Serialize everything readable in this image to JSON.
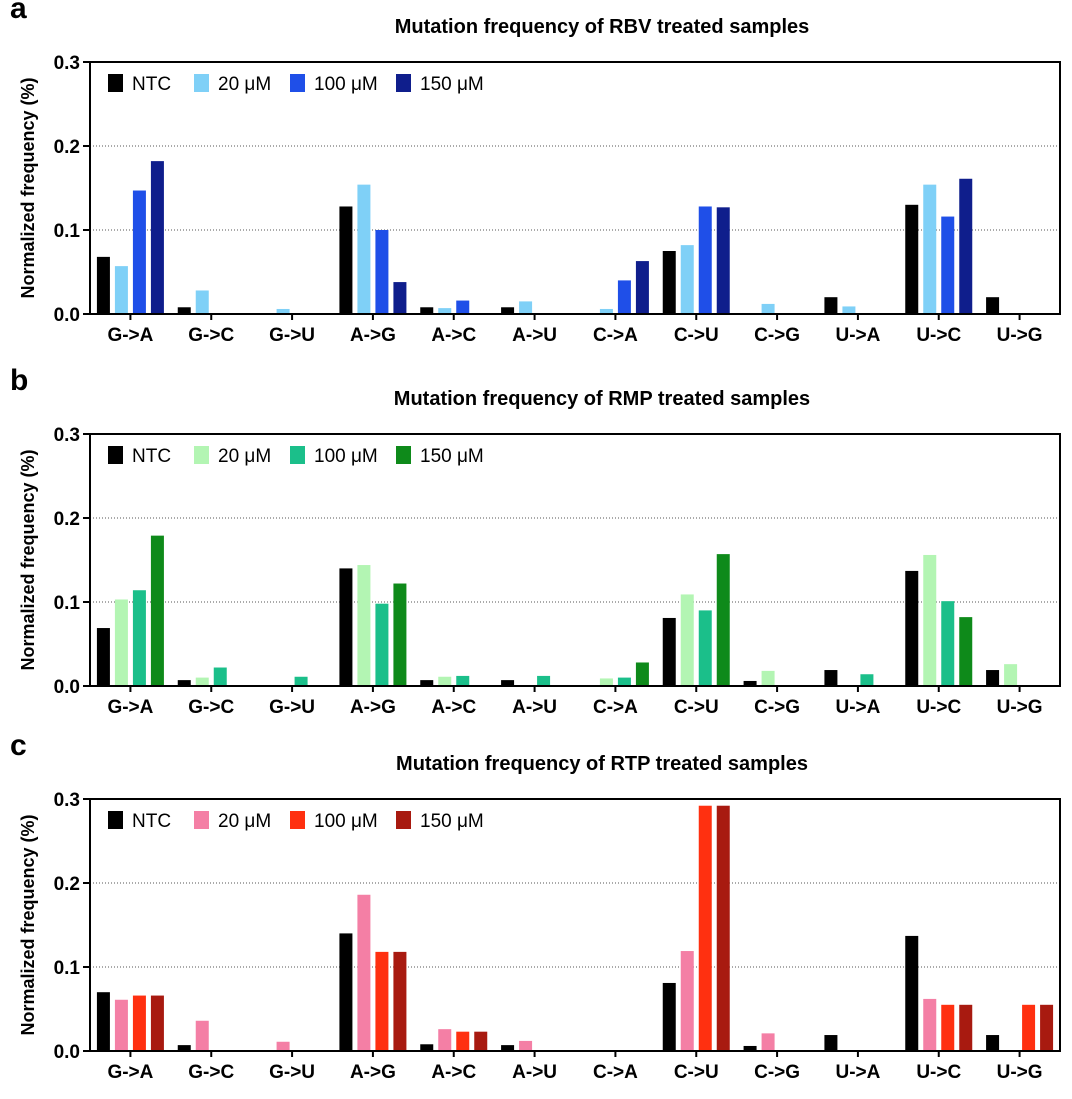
{
  "chart_data": [
    {
      "type": "bar",
      "panel_label": "a",
      "title": "Mutation frequency of RBV treated samples",
      "ylabel": "Normalized  frequency (%)",
      "xlabel": "",
      "ylim": [
        0,
        0.3
      ],
      "yticks": [
        "0.0",
        "0.1",
        "0.2",
        "0.3"
      ],
      "grid": "horizontal dotted",
      "legend_position": "top-left",
      "categories": [
        "G->A",
        "G->C",
        "G->U",
        "A->G",
        "A->C",
        "A->U",
        "C->A",
        "C->U",
        "C->G",
        "U->A",
        "U->C",
        "U->G"
      ],
      "series": [
        {
          "name": "NTC",
          "color": "#000000",
          "values": [
            0.068,
            0.008,
            0,
            0.128,
            0.008,
            0.008,
            0,
            0.075,
            0,
            0.02,
            0.13,
            0.02
          ]
        },
        {
          "name": "20 μM",
          "color": "#7fd0f7",
          "values": [
            0.057,
            0.028,
            0.006,
            0.154,
            0.007,
            0.015,
            0.006,
            0.082,
            0.012,
            0.009,
            0.154,
            0
          ]
        },
        {
          "name": "100 μM",
          "color": "#1f4fe8",
          "values": [
            0.147,
            0,
            0,
            0.1,
            0.016,
            0,
            0.04,
            0.128,
            0,
            0,
            0.116,
            0
          ]
        },
        {
          "name": "150 μM",
          "color": "#0f1e8c",
          "values": [
            0.182,
            0,
            0,
            0.038,
            0,
            0,
            0.063,
            0.127,
            0,
            0,
            0.161,
            0
          ]
        }
      ]
    },
    {
      "type": "bar",
      "panel_label": "b",
      "title": "Mutation frequency of RMP treated samples",
      "ylabel": "Normalized  frequency (%)",
      "xlabel": "",
      "ylim": [
        0,
        0.3
      ],
      "yticks": [
        "0.0",
        "0.1",
        "0.2",
        "0.3"
      ],
      "grid": "horizontal dotted",
      "legend_position": "top-left",
      "categories": [
        "G->A",
        "G->C",
        "G->U",
        "A->G",
        "A->C",
        "A->U",
        "C->A",
        "C->U",
        "C->G",
        "U->A",
        "U->C",
        "U->G"
      ],
      "series": [
        {
          "name": "NTC",
          "color": "#000000",
          "values": [
            0.069,
            0.007,
            0,
            0.14,
            0.007,
            0.007,
            0,
            0.081,
            0.006,
            0.019,
            0.137,
            0.019
          ]
        },
        {
          "name": "20 μM",
          "color": "#b3f5b3",
          "values": [
            0.103,
            0.01,
            0,
            0.144,
            0.011,
            0,
            0.009,
            0.109,
            0.018,
            0,
            0.156,
            0.026
          ]
        },
        {
          "name": "100 μM",
          "color": "#1bbf8a",
          "values": [
            0.114,
            0.022,
            0.011,
            0.098,
            0.012,
            0.012,
            0.01,
            0.09,
            0,
            0.014,
            0.101,
            0
          ]
        },
        {
          "name": "150 μM",
          "color": "#0e8a1a",
          "values": [
            0.179,
            0,
            0,
            0.122,
            0,
            0,
            0.028,
            0.157,
            0,
            0,
            0.082,
            0
          ]
        }
      ]
    },
    {
      "type": "bar",
      "panel_label": "c",
      "title": "Mutation frequency of RTP treated samples",
      "ylabel": "Normalized  frequency (%)",
      "xlabel": "",
      "ylim": [
        0,
        0.3
      ],
      "yticks": [
        "0.0",
        "0.1",
        "0.2",
        "0.3"
      ],
      "grid": "horizontal dotted",
      "legend_position": "top-left",
      "categories": [
        "G->A",
        "G->C",
        "G->U",
        "A->G",
        "A->C",
        "A->U",
        "C->A",
        "C->U",
        "C->G",
        "U->A",
        "U->C",
        "U->G"
      ],
      "series": [
        {
          "name": "NTC",
          "color": "#000000",
          "values": [
            0.07,
            0.007,
            0,
            0.14,
            0.008,
            0.007,
            0,
            0.081,
            0.006,
            0.019,
            0.137,
            0.019
          ]
        },
        {
          "name": "20 μM",
          "color": "#f47fa5",
          "values": [
            0.061,
            0.036,
            0.011,
            0.186,
            0.026,
            0.012,
            0,
            0.119,
            0.021,
            0,
            0.062,
            0
          ]
        },
        {
          "name": "100 μM",
          "color": "#ff3010",
          "values": [
            0.066,
            0,
            0,
            0.118,
            0.023,
            0,
            0,
            0.292,
            0,
            0,
            0.055,
            0.055
          ]
        },
        {
          "name": "150 μM",
          "color": "#a81a10",
          "values": [
            0.066,
            0,
            0,
            0.118,
            0.023,
            0,
            0,
            0.292,
            0,
            0,
            0.055,
            0.055
          ]
        }
      ]
    }
  ]
}
